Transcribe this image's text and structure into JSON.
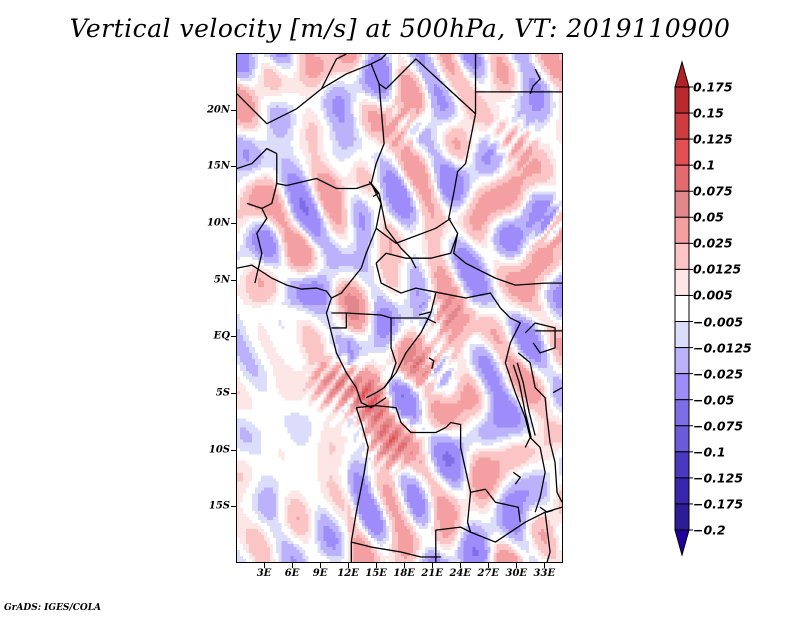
{
  "chart_data": {
    "type": "heatmap",
    "title": "Vertical velocity [m/s] at 500hPa, VT: 2019110900",
    "variable": "Vertical velocity",
    "units": "m/s",
    "level": "500hPa",
    "valid_time": "2019110900",
    "xlabel": "",
    "ylabel": "",
    "x_range_deg": [
      0,
      35
    ],
    "y_range_deg": [
      -20,
      25
    ],
    "xticks": [
      {
        "value": 3,
        "label": "3E"
      },
      {
        "value": 6,
        "label": "6E"
      },
      {
        "value": 9,
        "label": "9E"
      },
      {
        "value": 12,
        "label": "12E"
      },
      {
        "value": 15,
        "label": "15E"
      },
      {
        "value": 18,
        "label": "18E"
      },
      {
        "value": 21,
        "label": "21E"
      },
      {
        "value": 24,
        "label": "24E"
      },
      {
        "value": 27,
        "label": "27E"
      },
      {
        "value": 30,
        "label": "30E"
      },
      {
        "value": 33,
        "label": "33E"
      }
    ],
    "yticks": [
      {
        "value": 20,
        "label": "20N"
      },
      {
        "value": 15,
        "label": "15N"
      },
      {
        "value": 10,
        "label": "10N"
      },
      {
        "value": 5,
        "label": "5N"
      },
      {
        "value": 0,
        "label": "EQ"
      },
      {
        "value": -5,
        "label": "5S"
      },
      {
        "value": -10,
        "label": "10S"
      },
      {
        "value": -15,
        "label": "15S"
      }
    ],
    "colorbar": {
      "orientation": "vertical",
      "placement": "right",
      "extend": "both",
      "levels": [
        0.175,
        0.15,
        0.125,
        0.1,
        0.075,
        0.05,
        0.025,
        0.0125,
        0.005,
        -0.005,
        -0.0125,
        -0.025,
        -0.05,
        -0.075,
        -0.1,
        -0.125,
        -0.175,
        -0.2
      ],
      "labels": [
        "0.175",
        "0.15",
        "0.125",
        "0.1",
        "0.075",
        "0.05",
        "0.025",
        "0.0125",
        "0.005",
        "−0.005",
        "−0.0125",
        "−0.025",
        "−0.05",
        "−0.075",
        "−0.1",
        "−0.125",
        "−0.175",
        "−0.2"
      ],
      "colors_top_to_bottom": [
        "#b02228",
        "#b82a2e",
        "#cc3c40",
        "#e35054",
        "#e36b70",
        "#e2888c",
        "#f4a0a2",
        "#fbc5c6",
        "#fde6e6",
        "#ffffff",
        "#dcdcfb",
        "#bcb2fb",
        "#9d8cf9",
        "#7e6de6",
        "#6c5bd6",
        "#4a38c0",
        "#3a25ad",
        "#2d1c96",
        "#2200a0"
      ]
    },
    "annotations": [
      "GrADS: IGES/COLA"
    ],
    "region": "Central Africa"
  },
  "footer": "GrADS: IGES/COLA"
}
